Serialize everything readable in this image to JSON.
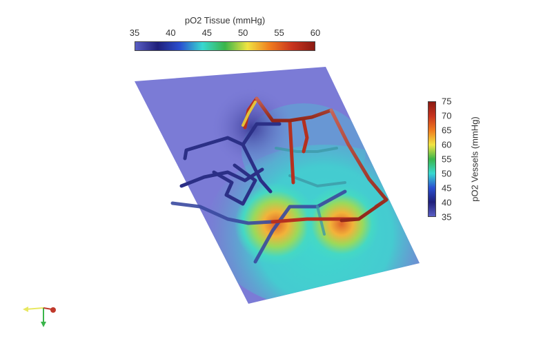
{
  "tissue_scale": {
    "title": "pO2 Tissue (mmHg)",
    "ticks": [
      "35",
      "40",
      "45",
      "50",
      "55",
      "60"
    ],
    "colors": [
      "#5a5fc4",
      "#1f1f7a",
      "#2a4fd0",
      "#38d8d0",
      "#3ab54a",
      "#f0e442",
      "#f07c1e",
      "#c8341e",
      "#8b1a12"
    ]
  },
  "vessel_scale": {
    "title": "pO2 Vessels (mmHg)",
    "ticks": [
      "75",
      "70",
      "65",
      "60",
      "55",
      "50",
      "45",
      "40",
      "35"
    ],
    "colors": [
      "#5a5fc4",
      "#1f1f7a",
      "#2a4fd0",
      "#38d8d0",
      "#3ab54a",
      "#f0e442",
      "#f07c1e",
      "#c8341e",
      "#8b1a12"
    ]
  },
  "orientation_axes": {
    "icon": "xyz-orientation-axes-icon"
  }
}
